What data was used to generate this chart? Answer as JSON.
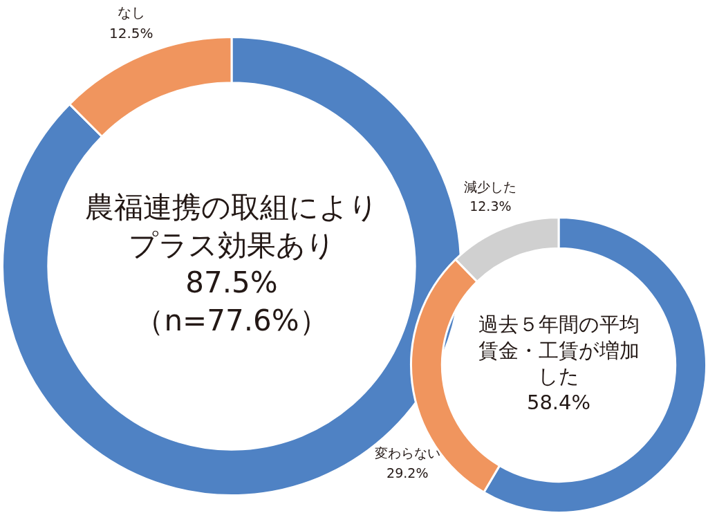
{
  "chart_data": [
    {
      "type": "donut",
      "categories": [
        "農福連携の取組によりプラス効果あり",
        "なし"
      ],
      "values": [
        87.5,
        12.5
      ],
      "value_labels": [
        "87.5%",
        "12.5%"
      ],
      "colors": [
        "#4f82c4",
        "#f0955e"
      ],
      "legend": false,
      "annotations": [
        "（n=77.6%）"
      ]
    },
    {
      "type": "donut",
      "categories": [
        "過去５年間の平均賃金・工賃が増加した",
        "変わらない",
        "減少した"
      ],
      "values": [
        58.4,
        29.2,
        12.3
      ],
      "value_labels": [
        "58.4%",
        "29.2%",
        "12.3%"
      ],
      "colors": [
        "#4f82c4",
        "#f0955e",
        "#d0d0d0"
      ],
      "legend": false
    }
  ]
}
